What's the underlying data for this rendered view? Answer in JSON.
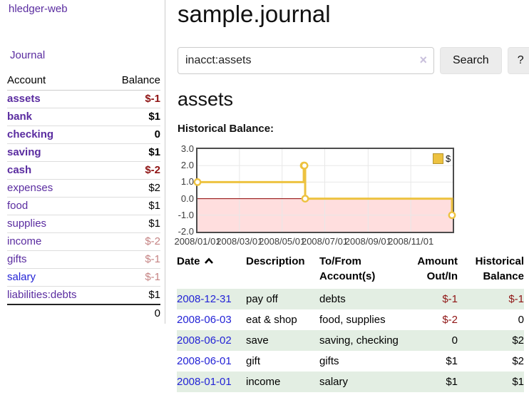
{
  "app": {
    "brand": "hledger-web",
    "nav_journal": "Journal"
  },
  "page_title": "sample.journal",
  "search": {
    "value": "inacct:assets",
    "clear_icon": "×",
    "button_label": "Search",
    "help_label": "?"
  },
  "account_heading": "assets",
  "sidebar": {
    "headers": {
      "account": "Account",
      "balance": "Balance"
    },
    "accounts": [
      {
        "name": "assets",
        "depth": 1,
        "balance": "$-1",
        "bold": true,
        "neg": "strong"
      },
      {
        "name": "bank",
        "depth": 2,
        "balance": "$1",
        "bold": true,
        "neg": "none"
      },
      {
        "name": "checking",
        "depth": 3,
        "balance": "0",
        "bold": true,
        "neg": "none"
      },
      {
        "name": "saving",
        "depth": 3,
        "balance": "$1",
        "bold": true,
        "neg": "none"
      },
      {
        "name": "cash",
        "depth": 2,
        "balance": "$-2",
        "bold": true,
        "neg": "strong"
      },
      {
        "name": "expenses",
        "depth": 1,
        "balance": "$2",
        "bold": false,
        "neg": "none"
      },
      {
        "name": "food",
        "depth": 2,
        "balance": "$1",
        "bold": false,
        "neg": "none"
      },
      {
        "name": "supplies",
        "depth": 2,
        "balance": "$1",
        "bold": false,
        "neg": "none"
      },
      {
        "name": "income",
        "depth": 1,
        "balance": "$-2",
        "bold": false,
        "neg": "soft"
      },
      {
        "name": "gifts",
        "depth": 2,
        "balance": "$-1",
        "bold": false,
        "neg": "soft"
      },
      {
        "name": "salary",
        "depth": 2,
        "balance": "$-1",
        "bold": false,
        "neg": "soft",
        "link": "blue"
      },
      {
        "name": "liabilities:debts",
        "depth": 1,
        "balance": "$1",
        "bold": false,
        "neg": "none"
      }
    ],
    "total": "0"
  },
  "chart_data": {
    "type": "line",
    "style": "step",
    "title": "Historical Balance:",
    "legend": [
      "$"
    ],
    "legend_position": "top-right",
    "x_range": [
      "2008-01-01",
      "2008-12-31"
    ],
    "ylim": [
      -2,
      3
    ],
    "y_ticks": [
      "3.0",
      "2.0",
      "1.0",
      "0.0",
      "-1.0",
      "-2.0"
    ],
    "x_ticks": [
      "2008/01/01",
      "2008/03/01",
      "2008/05/01",
      "2008/07/01",
      "2008/09/01",
      "2008/11/01"
    ],
    "grid": true,
    "series": [
      {
        "name": "$",
        "points": [
          [
            "2008-01-01",
            1
          ],
          [
            "2008-06-01",
            2
          ],
          [
            "2008-06-02",
            2
          ],
          [
            "2008-06-03",
            0
          ],
          [
            "2008-12-31",
            -1
          ]
        ]
      }
    ],
    "colors": {
      "line": "#edc240",
      "marker_fill": "#ffffff",
      "negative_region_fill": "#ffdede",
      "zero_line": "#8b0000",
      "gridline": "#e8e8e8",
      "border": "#4c4c4c"
    }
  },
  "register": {
    "headers": {
      "date": "Date",
      "description": "Description",
      "accounts": "To/From Account(s)",
      "amount": "Amount Out/In",
      "balance": "Historical Balance"
    },
    "sort": {
      "column": "date",
      "direction": "asc"
    },
    "rows": [
      {
        "date": "2008-12-31",
        "description": "pay off",
        "accounts": "debts",
        "amount": "$-1",
        "balance": "$-1",
        "green": true
      },
      {
        "date": "2008-06-03",
        "description": "eat & shop",
        "accounts": "food, supplies",
        "amount": "$-2",
        "balance": "0",
        "green": false
      },
      {
        "date": "2008-06-02",
        "description": "save",
        "accounts": "saving, checking",
        "amount": "0",
        "balance": "$2",
        "green": true
      },
      {
        "date": "2008-06-01",
        "description": "gift",
        "accounts": "gifts",
        "amount": "$1",
        "balance": "$2",
        "green": false
      },
      {
        "date": "2008-01-01",
        "description": "income",
        "accounts": "salary",
        "amount": "$1",
        "balance": "$1",
        "green": true
      }
    ]
  }
}
